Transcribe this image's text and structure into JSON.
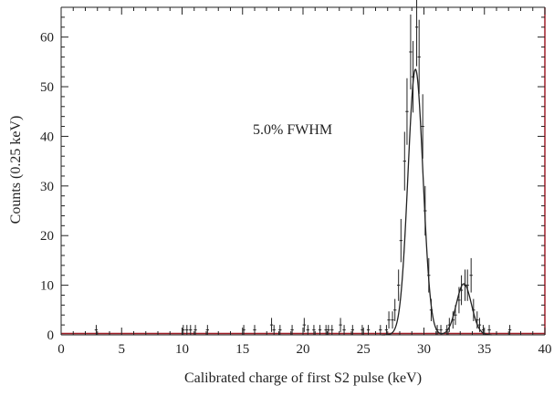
{
  "chart_data": {
    "type": "scatter",
    "title": "",
    "xlabel": "Calibrated charge of first S2 pulse (keV)",
    "ylabel": "Counts (0.25 keV)",
    "annotation": "5.0% FWHM",
    "xlim": [
      0,
      40
    ],
    "ylim": [
      0,
      66
    ],
    "xticks": [
      0,
      5,
      10,
      15,
      20,
      25,
      30,
      35,
      40
    ],
    "yticks": [
      0,
      10,
      20,
      30,
      40,
      50,
      60
    ],
    "grid": false,
    "colors": {
      "axis": "#222222",
      "frame_right": "#a01f28",
      "baseline": "#a01f28",
      "data": "#222222",
      "fit": "#222222"
    },
    "series": [
      {
        "kind": "histogram_points_with_errors",
        "x": [
          2.9,
          10.1,
          10.4,
          10.7,
          11.1,
          12.1,
          15.1,
          16.0,
          17.4,
          17.6,
          18.1,
          19.1,
          20.1,
          20.4,
          20.9,
          21.4,
          21.9,
          22.1,
          22.4,
          23.1,
          23.4,
          24.1,
          24.9,
          25.4,
          26.4,
          26.9,
          27.1,
          27.4,
          27.6,
          27.9,
          28.1,
          28.4,
          28.6,
          28.9,
          29.1,
          29.4,
          29.6,
          29.9,
          30.1,
          30.4,
          30.6,
          31.1,
          31.4,
          31.9,
          32.1,
          32.4,
          32.6,
          32.9,
          33.1,
          33.4,
          33.6,
          33.9,
          34.1,
          34.4,
          34.6,
          34.9,
          35.4,
          37.1
        ],
        "y": [
          1,
          1,
          1,
          1,
          1,
          1,
          1,
          1,
          2,
          1,
          1,
          1,
          2,
          1,
          1,
          1,
          1,
          1,
          1,
          2,
          1,
          1,
          1,
          1,
          1,
          1,
          3,
          3,
          5,
          10,
          19,
          35,
          45,
          57,
          52,
          62,
          56,
          42,
          25,
          12,
          5,
          1,
          1,
          1,
          2,
          3,
          4,
          7,
          9,
          10,
          10,
          12,
          5,
          3,
          2,
          1,
          1,
          1
        ]
      },
      {
        "kind": "fit_curve",
        "name": "",
        "peaks": [
          {
            "center": 29.3,
            "amplitude": 53.5,
            "sigma": 0.62
          },
          {
            "center": 33.3,
            "amplitude": 10.3,
            "sigma": 0.62
          }
        ]
      }
    ]
  }
}
